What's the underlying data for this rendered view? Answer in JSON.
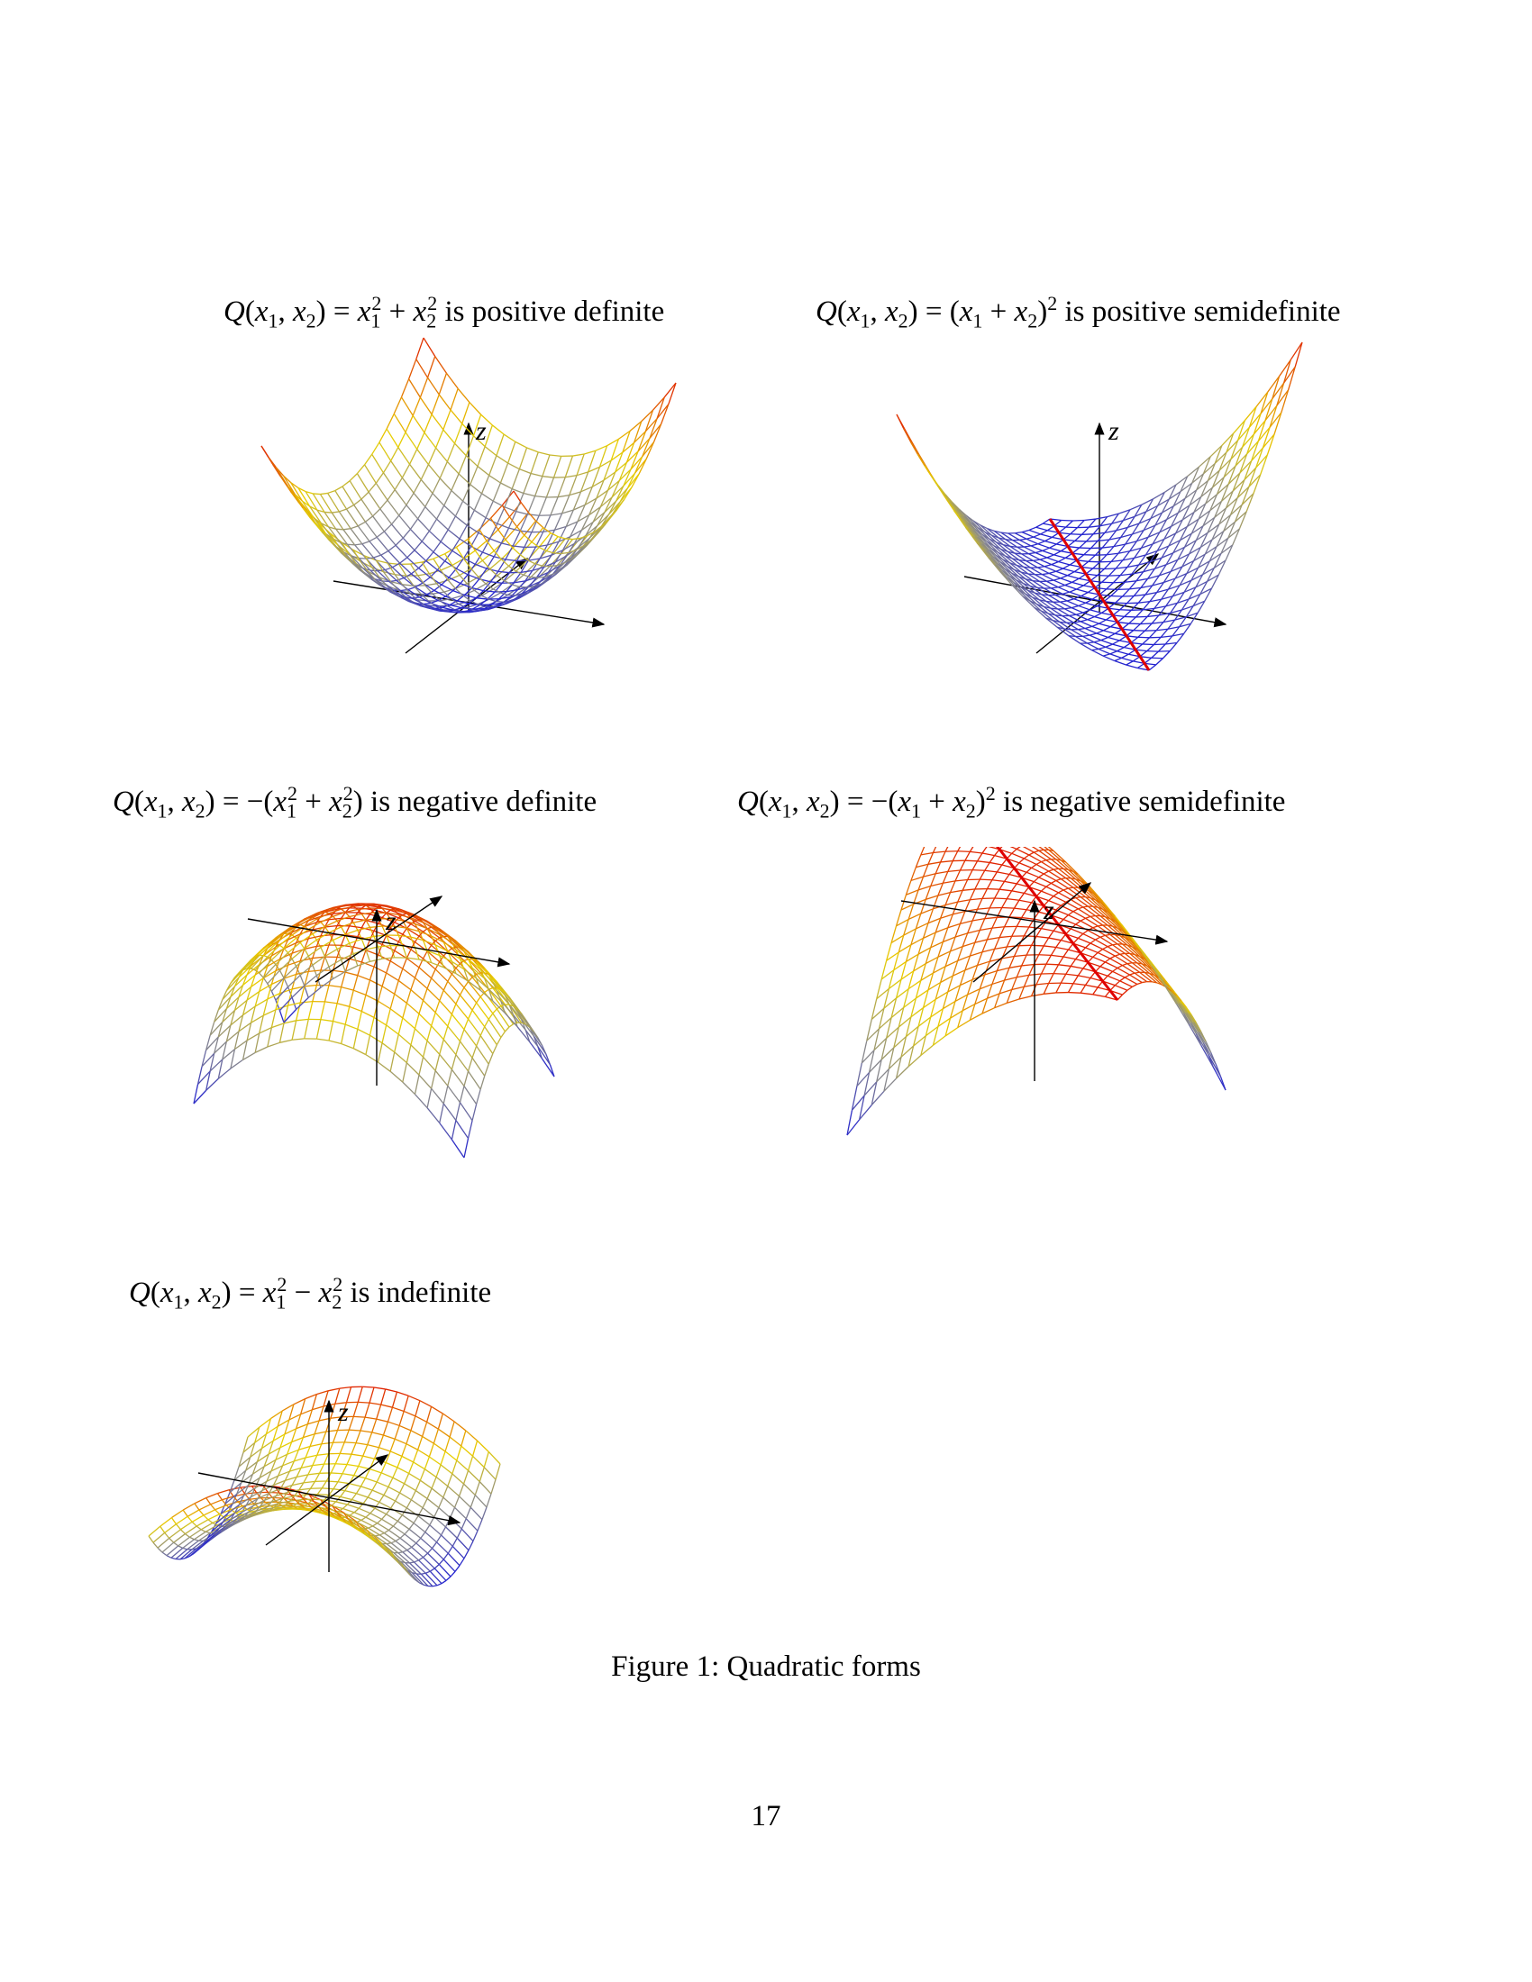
{
  "panels": [
    {
      "id": "pd",
      "title_math": [
        "Q",
        "(",
        "x",
        "1",
        ", ",
        "x",
        "2",
        ") = ",
        "x",
        "1",
        "2",
        " + ",
        "x",
        "2",
        "2"
      ],
      "title_suffix": " is positive definite",
      "z_label": "z"
    },
    {
      "id": "psd",
      "title_suffix": " is positive semidefinite",
      "z_label": "z"
    },
    {
      "id": "nd",
      "title_suffix": " is negative definite",
      "z_label": "z"
    },
    {
      "id": "nsd",
      "title_suffix": " is negative semidefinite",
      "z_label": "z"
    },
    {
      "id": "ind",
      "title_suffix": " is indefinite",
      "z_label": "z"
    }
  ],
  "caption": "Figure 1: Quadratic forms",
  "page_number": "17",
  "colors": {
    "low": "#2020d0",
    "mid_gray": "#8a8a8a",
    "mid_yellow": "#e8d000",
    "high": "#e02000"
  }
}
